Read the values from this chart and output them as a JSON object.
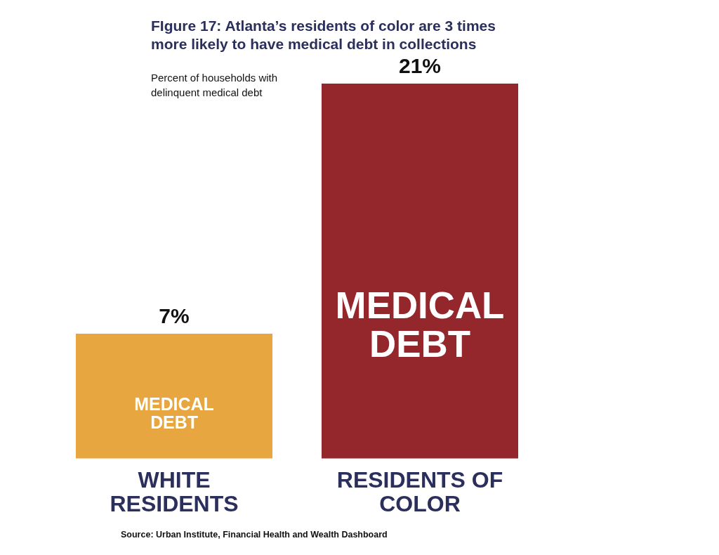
{
  "chart_data": {
    "type": "bar",
    "title": "FIgure 17: Atlanta’s residents of color are 3 times more likely to have medical debt in collections",
    "subtitle": "Percent of households with delinquent medical debt",
    "categories": [
      "WHITE RESIDENTS",
      "RESIDENTS OF COLOR"
    ],
    "values": [
      7,
      21
    ],
    "colors": [
      "#e8a640",
      "#94272b"
    ],
    "value_labels": [
      "7%",
      "21%"
    ],
    "tick_labels": "x",
    "annotations": [
      "MEDICAL DEBT",
      "MEDICAL DEBT",
      "Source: Urban Institute, Financial Health and Wealth Dashboard"
    ]
  }
}
